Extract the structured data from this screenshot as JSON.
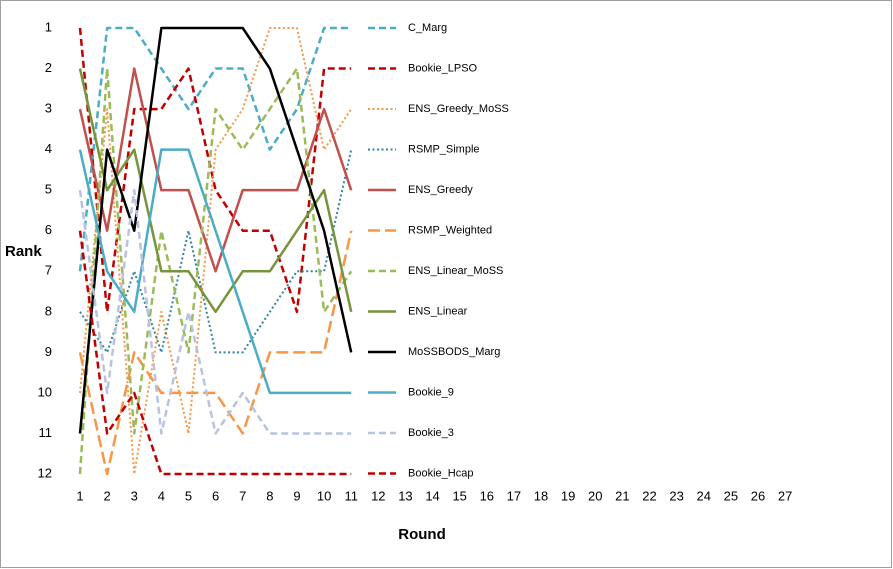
{
  "chart_data": {
    "type": "line",
    "x_label": "Round",
    "y_label": "Rank",
    "categories": [
      1,
      2,
      3,
      4,
      5,
      6,
      7,
      8,
      9,
      10,
      11,
      12,
      13,
      14,
      15,
      16,
      17,
      18,
      19,
      20,
      21,
      22,
      23,
      24,
      25,
      26,
      27
    ],
    "ylim": [
      1,
      12
    ],
    "yticks": [
      1,
      2,
      3,
      4,
      5,
      6,
      7,
      8,
      9,
      10,
      11,
      12
    ],
    "reverse_y": true,
    "grid": false,
    "legend": "right",
    "series": [
      {
        "name": "C_Marg",
        "color": "#4BACC6",
        "style": "dashed",
        "values": [
          7,
          1,
          1,
          2,
          3,
          2,
          2,
          4,
          3,
          1,
          1,
          null,
          null,
          null,
          null,
          null,
          null,
          null,
          null,
          null,
          null,
          null,
          null,
          null,
          null,
          null,
          null
        ]
      },
      {
        "name": "Bookie_LPSO",
        "color": "#C00000",
        "style": "dashed",
        "values": [
          1,
          8,
          3,
          3,
          2,
          5,
          6,
          6,
          8,
          2,
          2,
          null,
          null,
          null,
          null,
          null,
          null,
          null,
          null,
          null,
          null,
          null,
          null,
          null,
          null,
          null,
          null
        ]
      },
      {
        "name": "ENS_Greedy_MoSS",
        "color": "#F79646",
        "style": "dotted",
        "values": [
          10,
          3,
          12,
          8,
          11,
          4,
          3,
          1,
          1,
          4,
          3,
          null,
          null,
          null,
          null,
          null,
          null,
          null,
          null,
          null,
          null,
          null,
          null,
          null,
          null,
          null,
          null
        ]
      },
      {
        "name": "RSMP_Simple",
        "color": "#31859C",
        "style": "dotted",
        "values": [
          8,
          9,
          7,
          9,
          6,
          9,
          9,
          8,
          7,
          7,
          4,
          null,
          null,
          null,
          null,
          null,
          null,
          null,
          null,
          null,
          null,
          null,
          null,
          null,
          null,
          null,
          null
        ]
      },
      {
        "name": "ENS_Greedy",
        "color": "#C0504D",
        "style": "solid",
        "values": [
          3,
          6,
          2,
          5,
          5,
          7,
          5,
          5,
          5,
          3,
          5,
          null,
          null,
          null,
          null,
          null,
          null,
          null,
          null,
          null,
          null,
          null,
          null,
          null,
          null,
          null,
          null
        ]
      },
      {
        "name": "RSMP_Weighted",
        "color": "#F79646",
        "style": "longdash",
        "values": [
          9,
          12,
          9,
          10,
          10,
          10,
          11,
          9,
          9,
          9,
          6,
          null,
          null,
          null,
          null,
          null,
          null,
          null,
          null,
          null,
          null,
          null,
          null,
          null,
          null,
          null,
          null
        ]
      },
      {
        "name": "ENS_Linear_MoSS",
        "color": "#9BBB59",
        "style": "dashed",
        "values": [
          12,
          2,
          11,
          6,
          9,
          3,
          4,
          3,
          2,
          8,
          7,
          null,
          null,
          null,
          null,
          null,
          null,
          null,
          null,
          null,
          null,
          null,
          null,
          null,
          null,
          null,
          null
        ]
      },
      {
        "name": "ENS_Linear",
        "color": "#77933C",
        "style": "solid",
        "values": [
          2,
          5,
          4,
          7,
          7,
          8,
          7,
          7,
          6,
          5,
          8,
          null,
          null,
          null,
          null,
          null,
          null,
          null,
          null,
          null,
          null,
          null,
          null,
          null,
          null,
          null,
          null
        ]
      },
      {
        "name": "MoSSBODS_Marg",
        "color": "#000000",
        "style": "solid",
        "values": [
          11,
          4,
          6,
          1,
          1,
          1,
          1,
          2,
          4,
          6,
          9,
          null,
          null,
          null,
          null,
          null,
          null,
          null,
          null,
          null,
          null,
          null,
          null,
          null,
          null,
          null,
          null
        ]
      },
      {
        "name": "Bookie_9",
        "color": "#4BACC6",
        "style": "solid",
        "values": [
          4,
          7,
          8,
          4,
          4,
          6,
          8,
          10,
          10,
          10,
          10,
          null,
          null,
          null,
          null,
          null,
          null,
          null,
          null,
          null,
          null,
          null,
          null,
          null,
          null,
          null,
          null
        ]
      },
      {
        "name": "Bookie_3",
        "color": "#B9C3E0",
        "style": "dashed",
        "values": [
          5,
          10,
          5,
          11,
          8,
          11,
          10,
          11,
          11,
          11,
          11,
          null,
          null,
          null,
          null,
          null,
          null,
          null,
          null,
          null,
          null,
          null,
          null,
          null,
          null,
          null,
          null
        ]
      },
      {
        "name": "Bookie_Hcap",
        "color": "#C00000",
        "style": "dashed",
        "values": [
          6,
          11,
          10,
          12,
          12,
          12,
          12,
          12,
          12,
          12,
          12,
          null,
          null,
          null,
          null,
          null,
          null,
          null,
          null,
          null,
          null,
          null,
          null,
          null,
          null,
          null,
          null
        ]
      }
    ]
  }
}
